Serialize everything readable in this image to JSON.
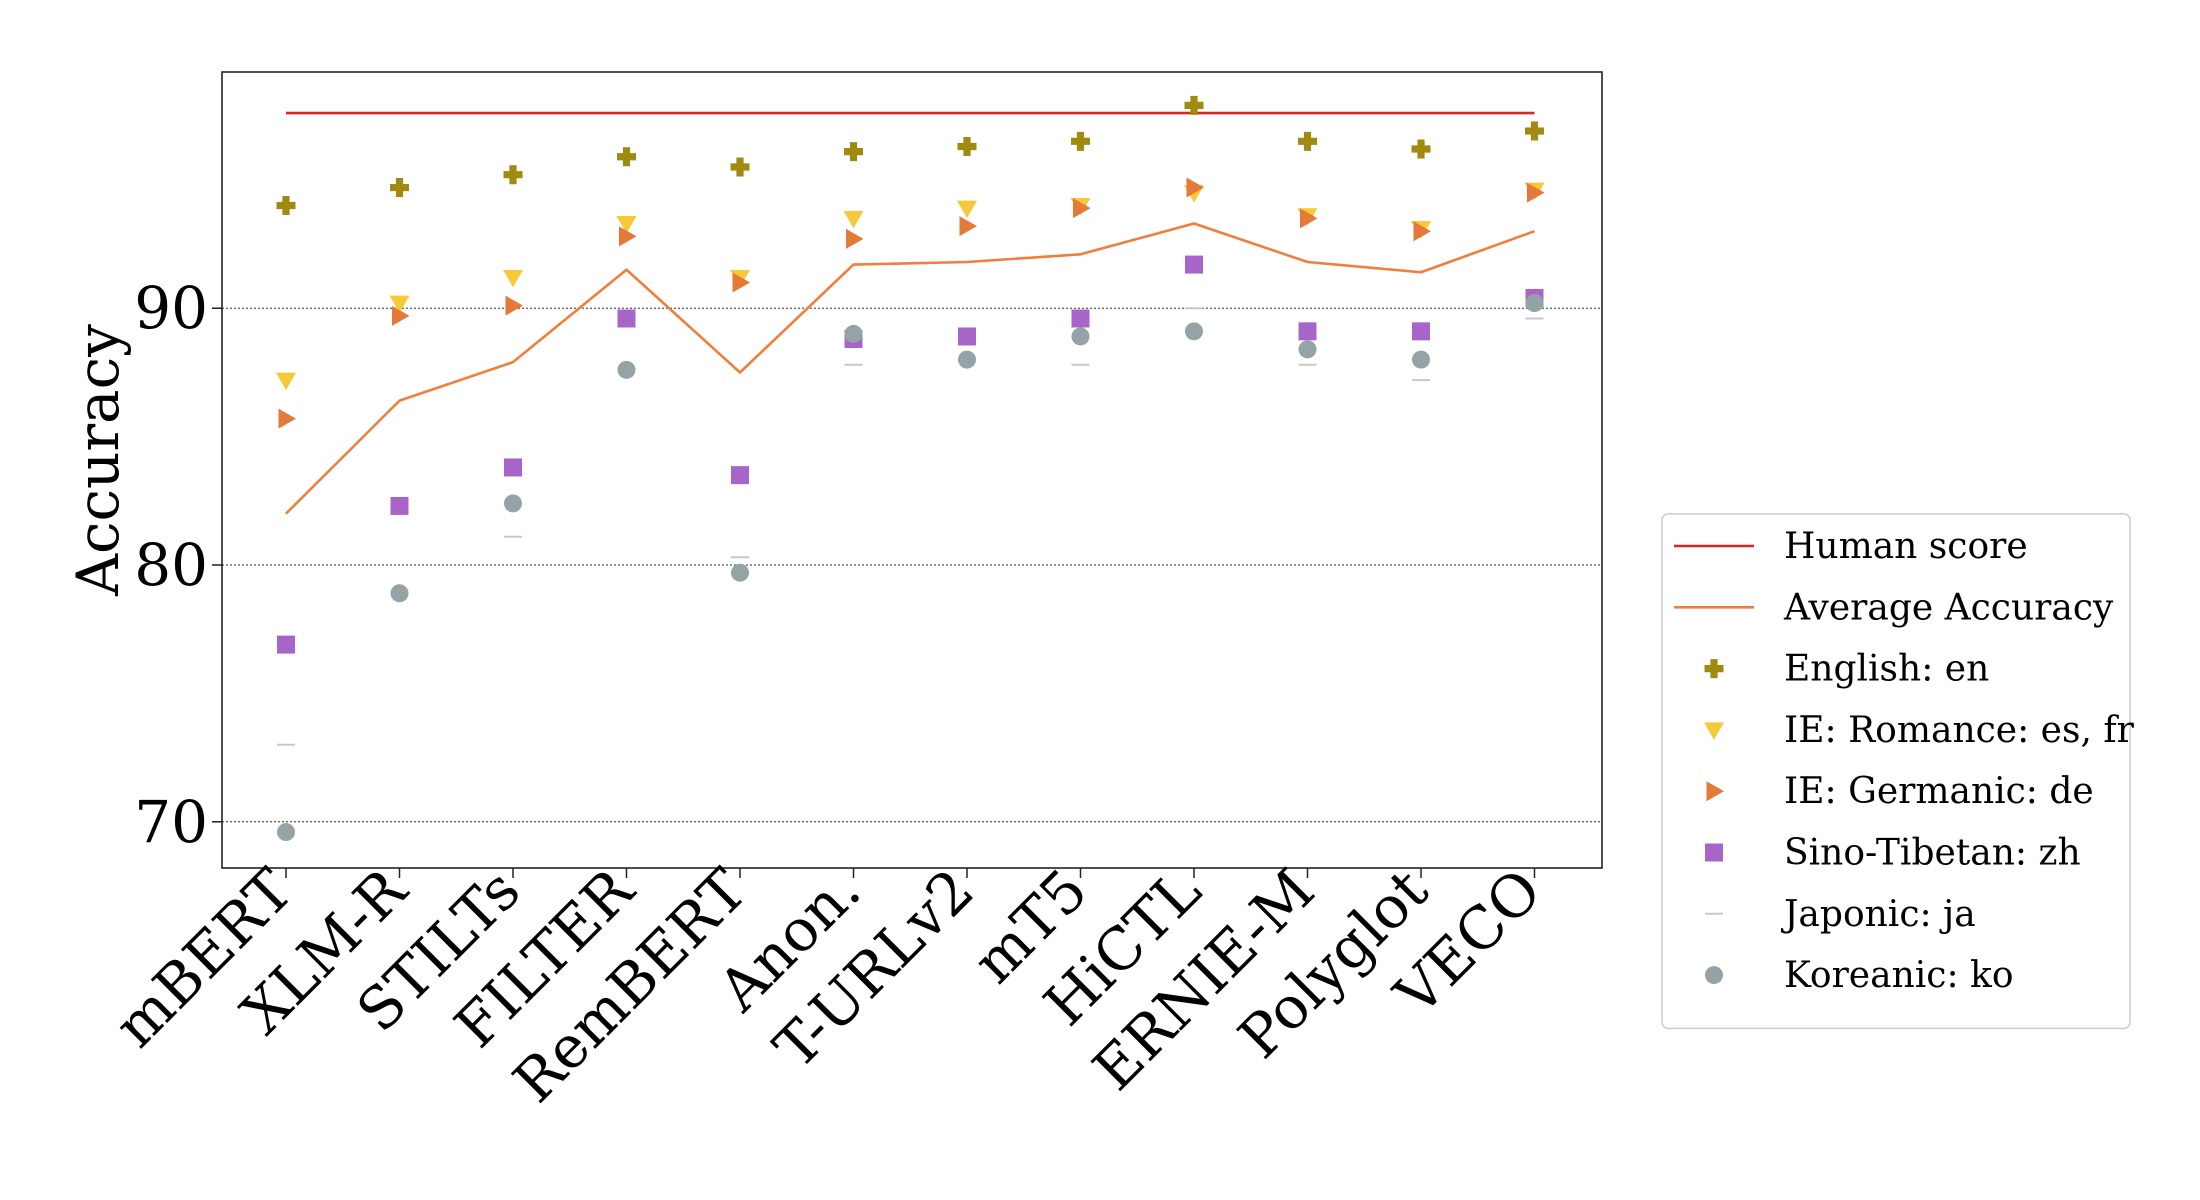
{
  "chart_data": {
    "type": "scatter",
    "xlabel": "",
    "ylabel": "Accuracy",
    "ylim": [
      68.2,
      99.2
    ],
    "yticks": [
      70,
      80,
      90
    ],
    "grid": "horizontal-dotted",
    "legend_position": "right",
    "categories": [
      "mBERT",
      "XLM-R",
      "STILTs",
      "FILTER",
      "RemBERT",
      "Anon.",
      "T-URLv2",
      "mT5",
      "HiCTL",
      "ERNIE-M",
      "Polyglot",
      "VECO"
    ],
    "human_score": {
      "name": "Human score",
      "value": 97.6,
      "color": "#d62728"
    },
    "average": {
      "name": "Average Accuracy",
      "color": "#f07f3c",
      "values": [
        82.0,
        86.4,
        87.9,
        91.5,
        87.5,
        91.7,
        91.8,
        92.1,
        93.3,
        91.8,
        91.4,
        93.0
      ]
    },
    "series": [
      {
        "name": "English: en",
        "marker": "plus",
        "color": "#a08a10",
        "values": [
          94.0,
          94.7,
          95.2,
          95.9,
          95.5,
          96.1,
          96.3,
          96.5,
          97.9,
          96.5,
          96.2,
          96.9
        ]
      },
      {
        "name": "IE: Romance: es, fr",
        "marker": "triangle-down",
        "color": "#f5c93a",
        "values": [
          87.2,
          90.2,
          91.2,
          93.3,
          91.2,
          93.5,
          93.9,
          94.0,
          94.5,
          93.6,
          93.1,
          94.6
        ]
      },
      {
        "name": "IE: Germanic: de",
        "marker": "triangle-right",
        "color": "#e57a38",
        "values": [
          85.7,
          89.7,
          90.1,
          92.8,
          91.0,
          92.7,
          93.2,
          93.9,
          94.7,
          93.5,
          93.0,
          94.5
        ]
      },
      {
        "name": "Sino-Tibetan: zh",
        "marker": "square",
        "color": "#a865c9",
        "values": [
          76.9,
          82.3,
          83.8,
          89.6,
          83.5,
          88.8,
          88.9,
          89.6,
          91.7,
          89.1,
          89.1,
          90.4
        ]
      },
      {
        "name": "Japonic: ja",
        "marker": "dash",
        "color": "#c8c8c8",
        "values": [
          73.0,
          null,
          81.1,
          null,
          80.3,
          87.8,
          null,
          87.8,
          90.0,
          87.8,
          87.2,
          89.6
        ]
      },
      {
        "name": "Koreanic: ko",
        "marker": "circle",
        "color": "#95a3a6",
        "values": [
          69.6,
          78.9,
          82.4,
          87.6,
          79.7,
          89.0,
          88.0,
          88.9,
          89.1,
          88.4,
          88.0,
          90.2
        ]
      }
    ]
  }
}
